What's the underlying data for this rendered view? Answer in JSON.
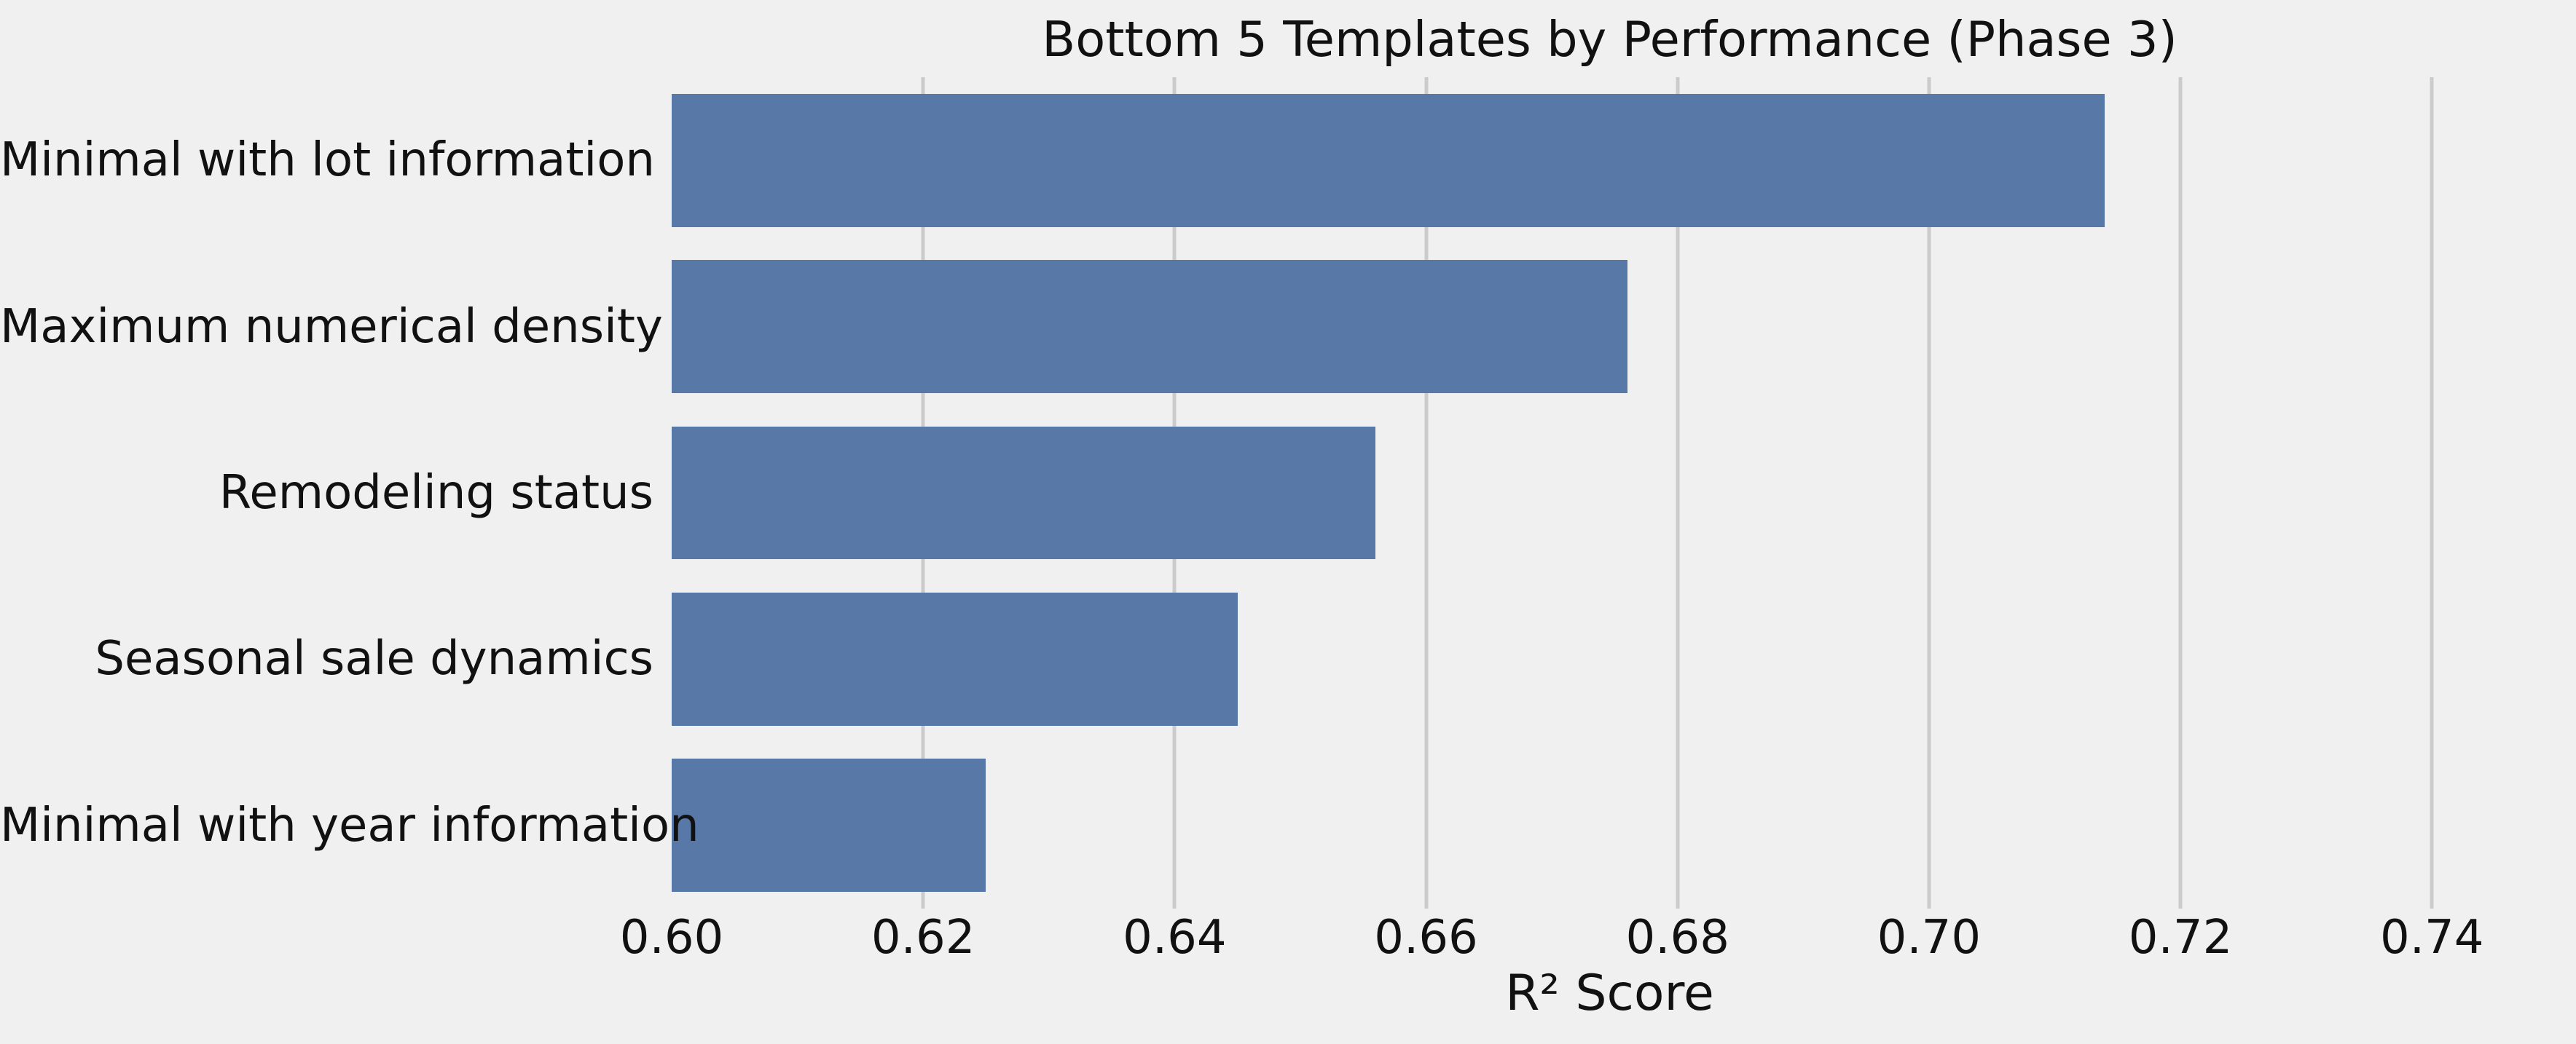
{
  "chart_data": {
    "type": "bar",
    "orientation": "horizontal",
    "title": "Bottom 5 Templates by Performance (Phase 3)",
    "xlabel": "R² Score",
    "categories": [
      "Minimal with lot information",
      "Maximum numerical density",
      "Remodeling status",
      "Seasonal sale dynamics",
      "Minimal with year information"
    ],
    "values": [
      0.714,
      0.676,
      0.656,
      0.645,
      0.625
    ],
    "xlim": [
      0.6,
      0.7492
    ],
    "xtick_values": [
      0.6,
      0.62,
      0.64,
      0.66,
      0.68,
      0.7,
      0.72,
      0.74
    ],
    "xtick_labels": [
      "0.60",
      "0.62",
      "0.64",
      "0.66",
      "0.68",
      "0.70",
      "0.72",
      "0.74"
    ],
    "bar_height_frac": 0.8,
    "grid": true,
    "legend": null,
    "colors": {
      "bar": "#5878a8",
      "figure_background": "#f0f0f0",
      "gridline": "#cbcbcb",
      "text": "#111111"
    }
  }
}
